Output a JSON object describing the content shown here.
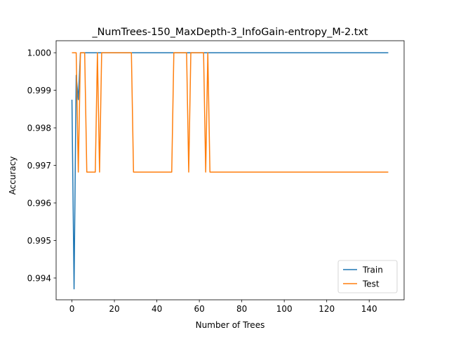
{
  "chart_data": {
    "type": "line",
    "title": "_NumTrees-150_MaxDepth-3_InfoGain-entropy_M-2.txt",
    "xlabel": "Number of Trees",
    "ylabel": "Accuracy",
    "xlim": [
      -7.45,
      156.45
    ],
    "ylim": [
      0.99342,
      1.00032
    ],
    "xticks": [
      0,
      20,
      40,
      60,
      80,
      100,
      120,
      140
    ],
    "yticks": [
      0.994,
      0.995,
      0.996,
      0.997,
      0.998,
      0.999,
      1.0
    ],
    "ytick_labels": [
      "0.994",
      "0.995",
      "0.996",
      "0.997",
      "0.998",
      "0.999",
      "1.000"
    ],
    "grid": false,
    "legend": "lower-right",
    "series": [
      {
        "name": "Train",
        "color": "#1f77b4",
        "points": [
          [
            0,
            0.99875
          ],
          [
            1,
            0.99371
          ],
          [
            2,
            0.9994
          ],
          [
            3,
            0.99875
          ],
          [
            4,
            1.0
          ],
          [
            149,
            1.0
          ]
        ]
      },
      {
        "name": "Test",
        "color": "#ff7f0e",
        "points": [
          [
            0,
            1.0
          ],
          [
            2,
            1.0
          ],
          [
            3,
            0.99682
          ],
          [
            4,
            1.0
          ],
          [
            6,
            1.0
          ],
          [
            7,
            0.99682
          ],
          [
            11,
            0.99682
          ],
          [
            12,
            1.0
          ],
          [
            13,
            0.99682
          ],
          [
            14,
            1.0
          ],
          [
            28,
            1.0
          ],
          [
            29,
            0.99682
          ],
          [
            47,
            0.99682
          ],
          [
            48,
            1.0
          ],
          [
            54,
            1.0
          ],
          [
            55,
            0.99682
          ],
          [
            56,
            1.0
          ],
          [
            62,
            1.0
          ],
          [
            63,
            0.99682
          ],
          [
            64,
            1.0
          ],
          [
            65,
            0.99682
          ],
          [
            149,
            0.99682
          ]
        ]
      }
    ]
  }
}
